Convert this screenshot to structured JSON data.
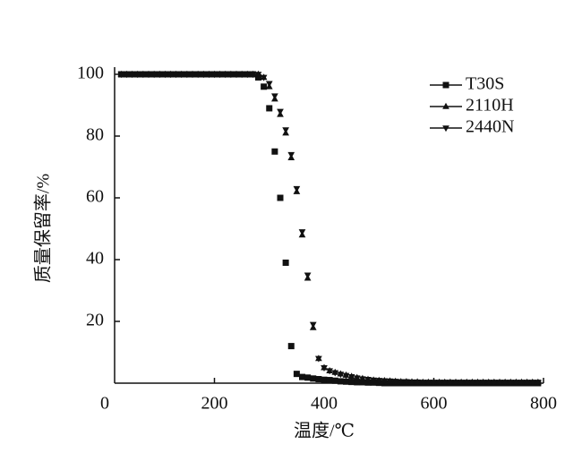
{
  "chart_data": {
    "type": "scatter",
    "x_label": "温度/℃",
    "y_label": "质量保留率/%",
    "x": [
      30,
      40,
      50,
      60,
      70,
      80,
      90,
      100,
      110,
      120,
      130,
      140,
      150,
      160,
      170,
      180,
      190,
      200,
      210,
      220,
      230,
      240,
      250,
      260,
      270,
      280,
      290,
      300,
      310,
      320,
      330,
      340,
      350,
      360,
      370,
      380,
      390,
      400,
      410,
      420,
      430,
      440,
      450,
      460,
      470,
      480,
      490,
      500,
      510,
      520,
      530,
      540,
      550,
      560,
      570,
      580,
      590,
      600,
      610,
      620,
      630,
      640,
      650,
      660,
      670,
      680,
      690,
      700,
      710,
      720,
      730,
      740,
      750,
      760,
      770,
      780,
      790
    ],
    "series": [
      {
        "name": "T30S",
        "color": "#111111",
        "marker": "square",
        "values": [
          100,
          100,
          100,
          100,
          100,
          100,
          100,
          100,
          100,
          100,
          100,
          100,
          100,
          100,
          100,
          100,
          100,
          100,
          100,
          100,
          100,
          100,
          100,
          100,
          100,
          99,
          96,
          89,
          75,
          60,
          39,
          12,
          3,
          2,
          1.8,
          1.5,
          1.3,
          1.1,
          1,
          0.8,
          0.6,
          0.5,
          0.4,
          0.3,
          0.3,
          0.2,
          0.2,
          0.1,
          0,
          0,
          0,
          0,
          0,
          0,
          0,
          0,
          0,
          0,
          0,
          0,
          0,
          0,
          0,
          0,
          0,
          0,
          0,
          0,
          0,
          0,
          0,
          0,
          0,
          0,
          0,
          0,
          0
        ]
      },
      {
        "name": "2110H",
        "color": "#111111",
        "marker": "triangle-up",
        "values": [
          100,
          100,
          100,
          100,
          100,
          100,
          100,
          100,
          100,
          100,
          100,
          100,
          100,
          100,
          100,
          100,
          100,
          100,
          100,
          100,
          100,
          100,
          100,
          100,
          100,
          100,
          99,
          96,
          92,
          87,
          81,
          73,
          62,
          48,
          34,
          18,
          8,
          5,
          4,
          3.5,
          3,
          2.6,
          2.2,
          1.8,
          1.5,
          1.2,
          1,
          0.9,
          0.8,
          0.7,
          0.6,
          0.5,
          0.5,
          0.4,
          0.4,
          0.3,
          0.3,
          0.3,
          0.3,
          0.3,
          0.3,
          0.3,
          0.3,
          0.3,
          0.3,
          0.3,
          0.3,
          0.3,
          0.3,
          0.3,
          0.3,
          0.3,
          0.3,
          0.3,
          0.3,
          0.3,
          0.3
        ]
      },
      {
        "name": "2440N",
        "color": "#111111",
        "marker": "triangle-down",
        "values": [
          100,
          100,
          100,
          100,
          100,
          100,
          100,
          100,
          100,
          100,
          100,
          100,
          100,
          100,
          100,
          100,
          100,
          100,
          100,
          100,
          100,
          100,
          100,
          100,
          100,
          100,
          99,
          97,
          93,
          88,
          82,
          74,
          63,
          49,
          35,
          19,
          8,
          5,
          4,
          3.4,
          2.9,
          2.5,
          2.1,
          1.7,
          1.4,
          1.2,
          1,
          0.9,
          0.8,
          0.7,
          0.6,
          0.5,
          0.5,
          0.4,
          0.4,
          0.3,
          0.3,
          0.3,
          0.3,
          0.3,
          0.3,
          0.3,
          0.3,
          0.3,
          0.3,
          0.3,
          0.3,
          0.3,
          0.3,
          0.3,
          0.3,
          0.3,
          0.3,
          0.3,
          0.3,
          0.3,
          0.3
        ]
      }
    ],
    "xlim": [
      0,
      800
    ],
    "xticks": [
      0,
      200,
      400,
      600,
      800
    ],
    "ylim": [
      0,
      100
    ],
    "yticks": [
      20,
      40,
      60,
      80,
      100
    ],
    "grid": false,
    "legend": "upper right"
  }
}
